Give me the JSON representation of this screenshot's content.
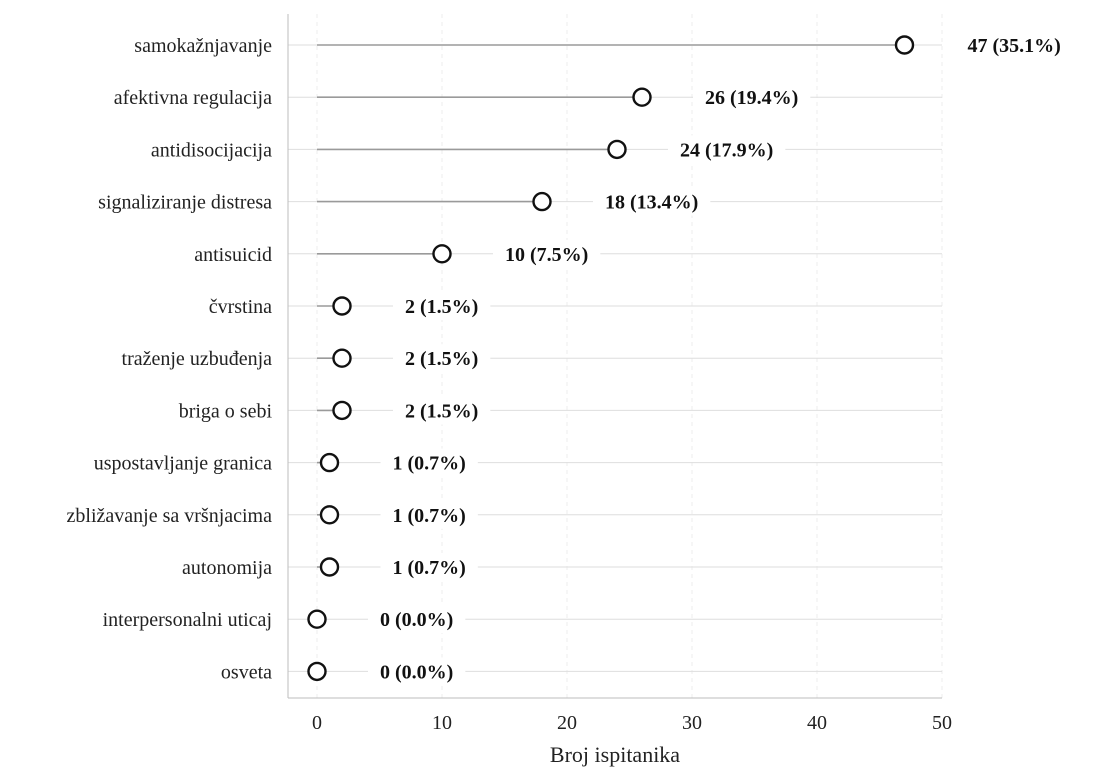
{
  "chart_data": {
    "type": "lollipop",
    "orientation": "horizontal",
    "xlabel": "Broj ispitanika",
    "ylabel": "",
    "title": "",
    "xlim": [
      -2.3,
      50
    ],
    "xticks": [
      0,
      10,
      20,
      30,
      40,
      50
    ],
    "xtick_labels": [
      "0",
      "10",
      "20",
      "30",
      "40",
      "50"
    ],
    "grid": true,
    "categories": [
      "samokažnjavanje",
      "afektivna regulacija",
      "antidisocijacija",
      "signaliziranje distresa",
      "antisuicid",
      "čvrstina",
      "traženje uzbuđenja",
      "briga o sebi",
      "uspostavljanje granica",
      "zbližavanje sa vršnjacima",
      "autonomija",
      "interpersonalni uticaj",
      "osveta"
    ],
    "values": [
      47,
      26,
      24,
      18,
      10,
      2,
      2,
      2,
      1,
      1,
      1,
      0,
      0
    ],
    "data_labels": [
      "47 (35.1%)",
      "26 (19.4%)",
      "24 (17.9%)",
      "18 (13.4%)",
      "10 (7.5%)",
      "2 (1.5%)",
      "2 (1.5%)",
      "2 (1.5%)",
      "1 (0.7%)",
      "1 (0.7%)",
      "1 (0.7%)",
      "0 (0.0%)",
      "0 (0.0%)"
    ],
    "colors": {
      "marker_edge": "#111111",
      "stem": "#9a9a9a",
      "grid": "#dedede",
      "axis": "#bdbdbd",
      "text": "#222222"
    }
  }
}
